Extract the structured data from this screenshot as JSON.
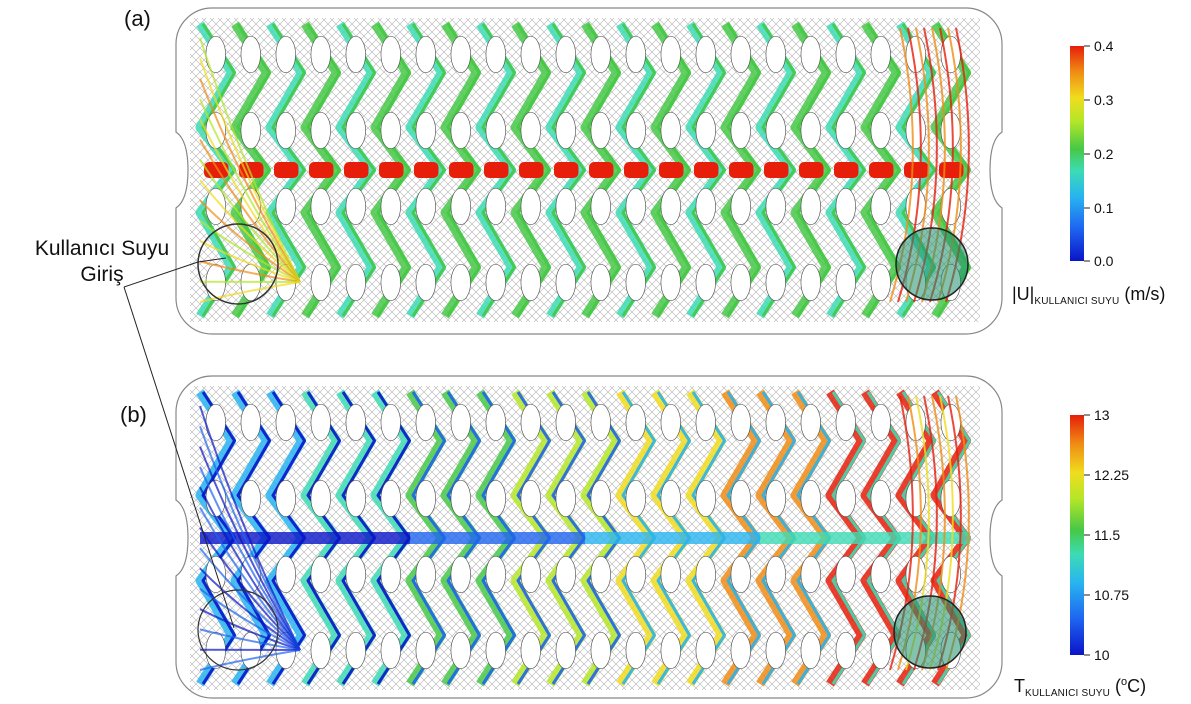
{
  "panels": [
    {
      "label": "(a)",
      "field": "velocity",
      "colorbar": {
        "ticks": [
          "0.4",
          "0.3",
          "0.2",
          "0.1",
          "0.0"
        ],
        "symbol": "|U|",
        "subscript": "KULLANICI SUYU",
        "unit": " (m/s)"
      }
    },
    {
      "label": "(b)",
      "field": "temperature",
      "colorbar": {
        "ticks": [
          "13",
          "12.25",
          "11.5",
          "10.75",
          "10"
        ],
        "symbol": "T",
        "subscript": "KULLANICI SUYU",
        "unit_open": " (",
        "unit_sup": "o",
        "unit_close": "C)"
      }
    }
  ],
  "callout": {
    "line1": "Kullanıcı Suyu",
    "line2": "Giriş"
  },
  "colors": {
    "colormap": [
      "#0a14c8",
      "#1e64f0",
      "#28b4f0",
      "#3cdcb4",
      "#46c846",
      "#b4e628",
      "#f0dc1e",
      "#f08c14",
      "#e61e0a"
    ],
    "plate_outline": "#888888",
    "mesh": "#555555"
  }
}
